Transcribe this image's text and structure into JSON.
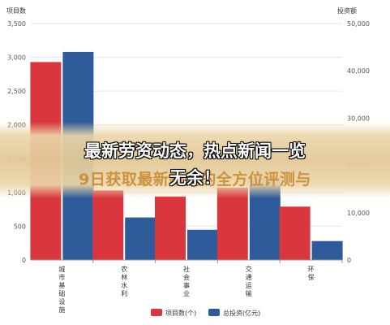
{
  "chart_data": {
    "type": "bar",
    "categories": [
      "城市基础设施",
      "农林水利",
      "社会事业",
      "交通运输",
      "环保"
    ],
    "series": [
      {
        "name": "项目数(个)",
        "axis": "left",
        "color": "#d9363e",
        "values": [
          2930,
          1030,
          940,
          1070,
          790
        ]
      },
      {
        "name": "总投资(亿元)",
        "axis": "right",
        "color": "#2e5b9a",
        "values": [
          44000,
          9000,
          6400,
          17500,
          4000
        ]
      }
    ],
    "yleft": {
      "label": "项目数",
      "min": 0,
      "max": 3500,
      "ticks": [
        "0",
        "500",
        "1,000",
        "1,500",
        "2,000",
        "2,500",
        "3,000",
        "3,500"
      ]
    },
    "yright": {
      "label": "投资额",
      "min": 0,
      "max": 50000,
      "ticks": [
        "0",
        "10,000",
        "20,000",
        "30,000",
        "40,000",
        "50,000"
      ]
    },
    "legend_position": "bottom",
    "grid": true
  },
  "overlay": {
    "line1": "最新劳资动态，热点新闻一览",
    "line2": "无余！",
    "back_line": "9日获取最新新闻的全方位评测与"
  }
}
